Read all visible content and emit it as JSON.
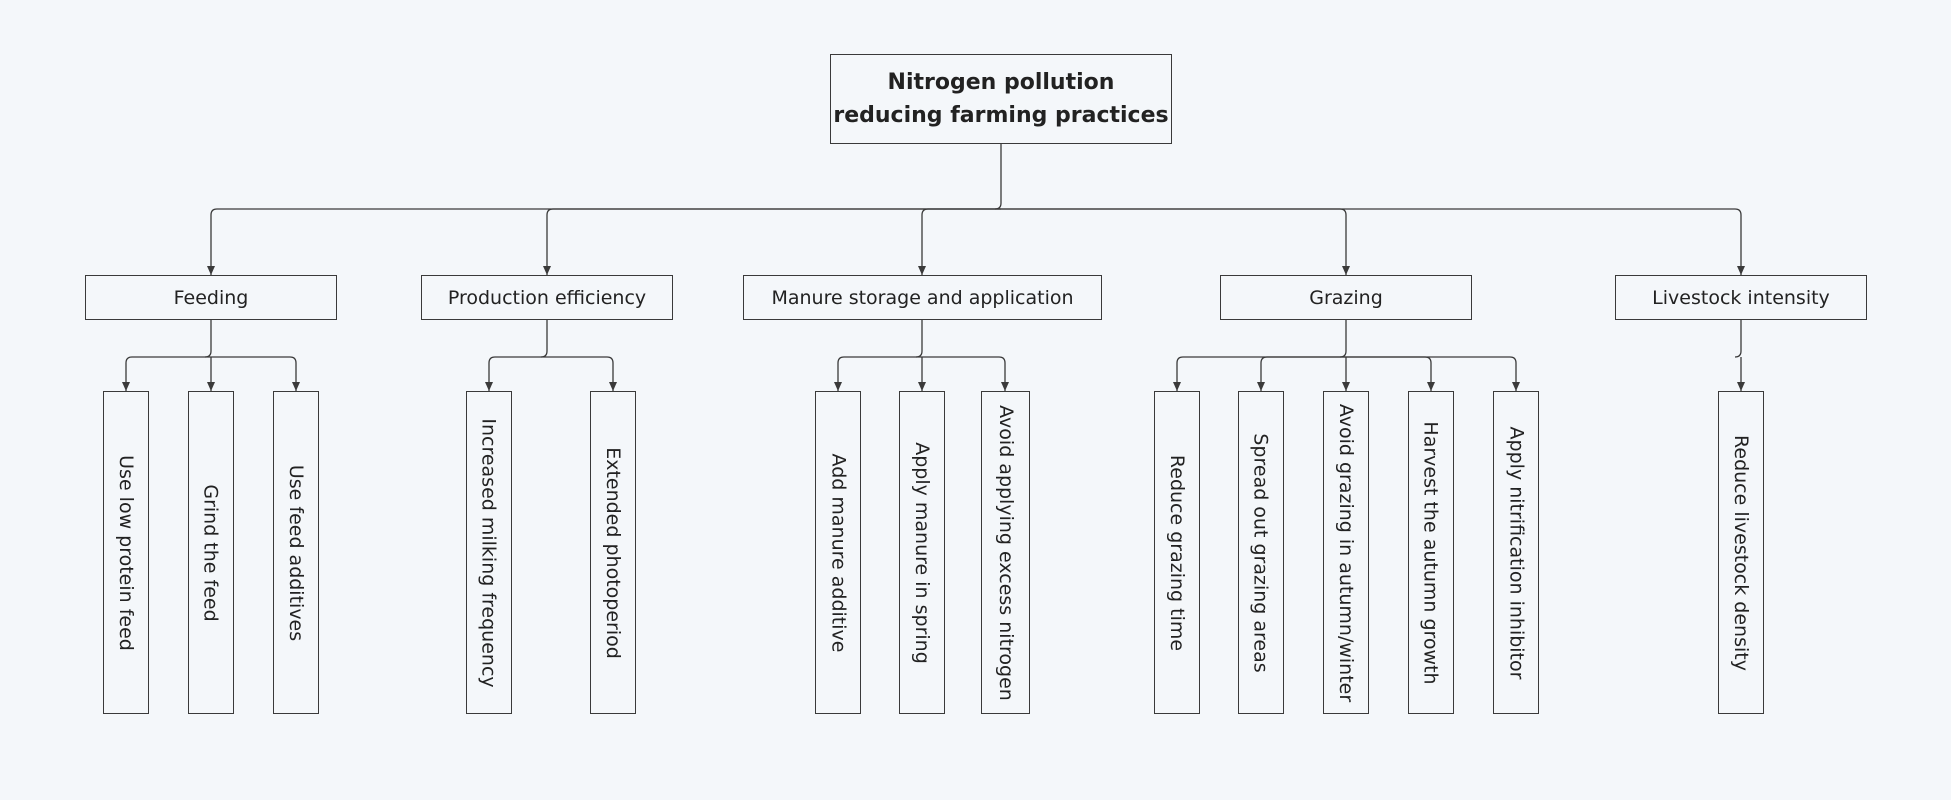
{
  "root": {
    "title_line1": "Nitrogen pollution",
    "title_line2": "reducing farming practices"
  },
  "categories": [
    {
      "label": "Feeding",
      "items": [
        "Use low protein feed",
        "Grind the feed",
        "Use feed additives"
      ]
    },
    {
      "label": "Production efficiency",
      "items": [
        "Increased milking frequency",
        "Extended photoperiod"
      ]
    },
    {
      "label": "Manure storage and application",
      "items": [
        "Add manure additive",
        "Apply manure in spring",
        "Avoid applying excess nitrogen"
      ]
    },
    {
      "label": "Grazing",
      "items": [
        "Reduce grazing time",
        "Spread out grazing areas",
        "Avoid grazing in autumn/winter",
        "Harvest the autumn growth",
        "Apply nitrification inhibitor"
      ]
    },
    {
      "label": "Livestock intensity",
      "items": [
        "Reduce livestock density"
      ]
    }
  ],
  "colors": {
    "line": "#3a3a3a",
    "background": "#f4f7fa",
    "text": "#222222"
  }
}
